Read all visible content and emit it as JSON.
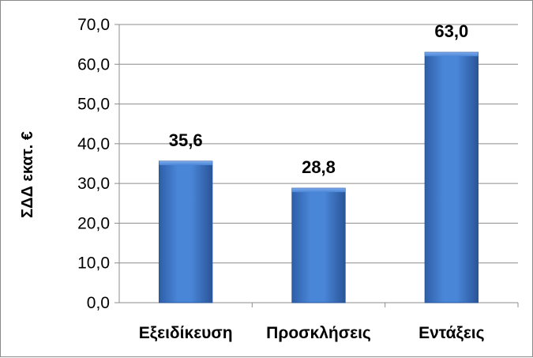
{
  "chart_data": {
    "type": "bar",
    "categories": [
      "Εξειδίκευση",
      "Προσκλήσεις",
      "Εντάξεις"
    ],
    "values": [
      35.6,
      28.8,
      63.0
    ],
    "data_labels": [
      "35,6",
      "28,8",
      "63,0"
    ],
    "ylabel": "ΣΔΔ εκατ. €",
    "xlabel": "",
    "ylim": [
      0,
      70
    ],
    "y_ticks": [
      0,
      10,
      20,
      30,
      40,
      50,
      60,
      70
    ],
    "y_tick_labels": [
      "0,0",
      "10,0",
      "20,0",
      "30,0",
      "40,0",
      "50,0",
      "60,0",
      "70,0"
    ],
    "grid": true,
    "legend": "none",
    "bar_color": "#3f75c8",
    "bar_edge_color": "#2a559a"
  }
}
